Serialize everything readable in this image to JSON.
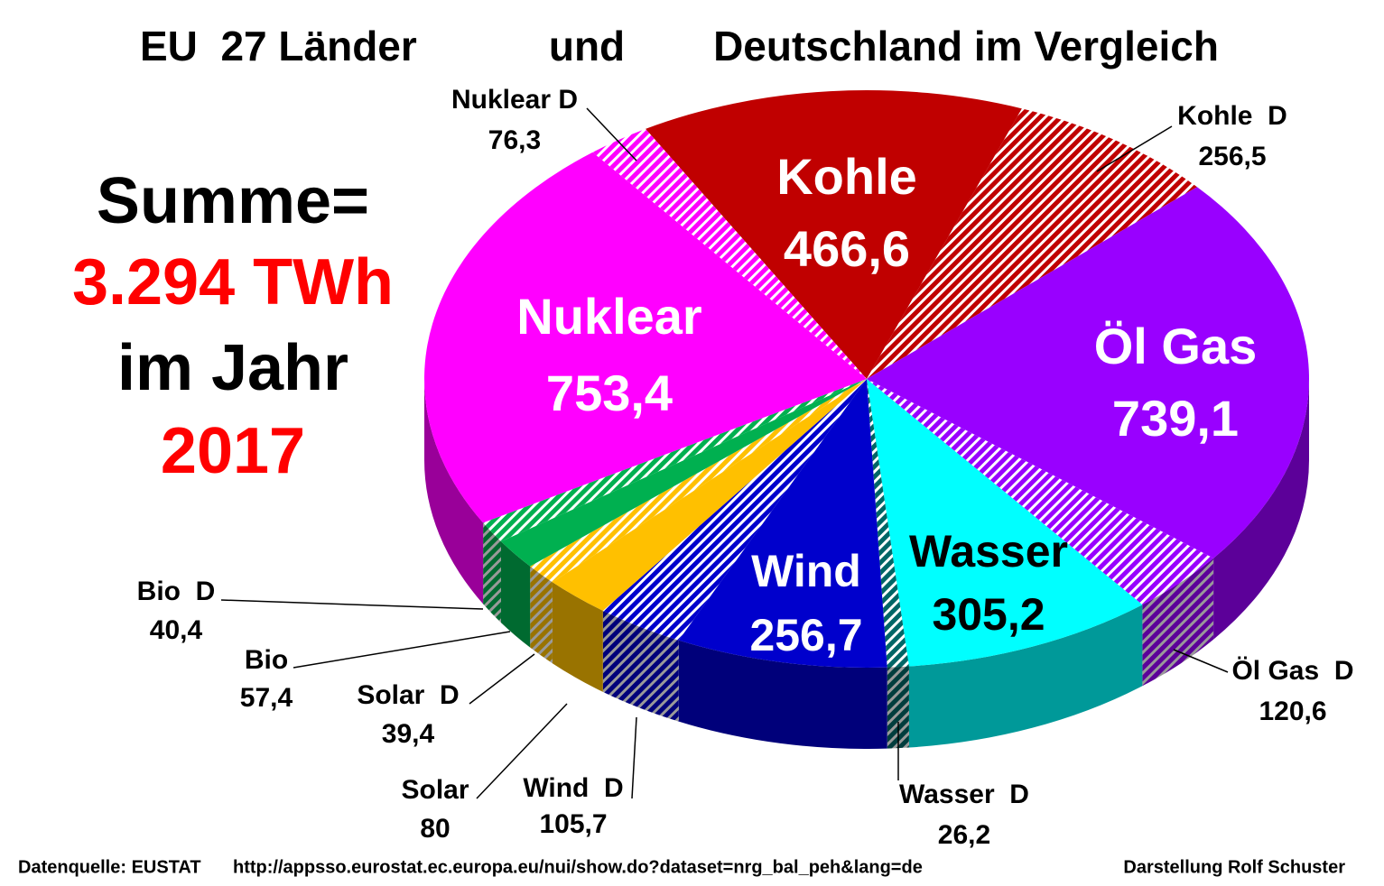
{
  "chart_data": {
    "type": "pie3d",
    "title": [
      "EU  27 Länder",
      "und",
      "Deutschland im Vergleich"
    ],
    "annotations": [
      "Summe=",
      "3.294 TWh",
      "im Jahr",
      "2017"
    ],
    "footer": [
      "Datenquelle: EUSTAT",
      "http://appsso.eurostat.ec.europa.eu/nui/show.do?dataset=nrg_bal_peh&lang=de",
      "Darstellung Rolf Schuster"
    ],
    "categories": [
      "Kohle",
      "Kohle  D",
      "Öl Gas",
      "Öl Gas  D",
      "Wasser",
      "Wasser  D",
      "Wind",
      "Wind  D",
      "Solar",
      "Solar  D",
      "Bio",
      "Bio  D",
      "Nuklear",
      "Nuklear D"
    ],
    "values": [
      466.6,
      256.5,
      739.1,
      120.6,
      305.2,
      26.2,
      256.7,
      105.7,
      80,
      39.4,
      57.4,
      40.4,
      753.4,
      76.3
    ],
    "value_labels": [
      "466,6",
      "256,5",
      "739,1",
      "120,6",
      "305,2",
      "26,2",
      "256,7",
      "105,7",
      "80",
      "39,4",
      "57,4",
      "40,4",
      "753,4",
      "76,3"
    ],
    "colors": [
      "#c00000",
      "#c00000",
      "#9900ff",
      "#9900ff",
      "#00ffff",
      "#006666",
      "#0000cc",
      "#0000cc",
      "#ffc000",
      "#ffc000",
      "#00b050",
      "#00b050",
      "#ff00ff",
      "#ff00ff"
    ],
    "hatched": [
      false,
      true,
      false,
      true,
      false,
      true,
      false,
      true,
      false,
      true,
      false,
      true,
      false,
      true
    ]
  }
}
